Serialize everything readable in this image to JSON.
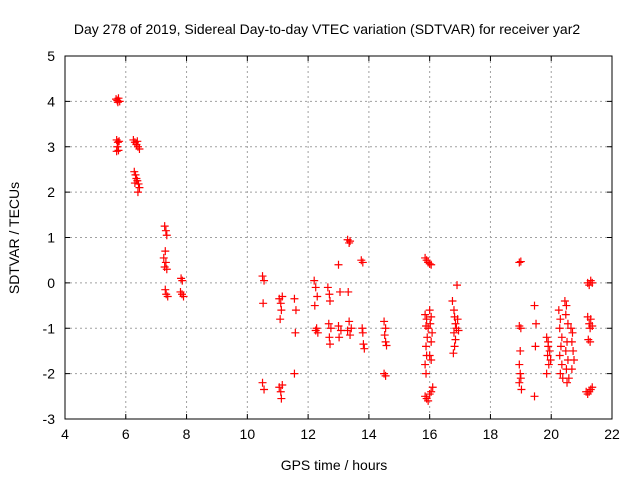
{
  "chart_data": {
    "type": "scatter",
    "title": "Day 278 of 2019, Sidereal Day-to-day VTEC variation (SDTVAR) for receiver yar2",
    "xlabel": "GPS time / hours",
    "ylabel": "SDTVAR / TECUs",
    "xlim": [
      4,
      22
    ],
    "ylim": [
      -3,
      5
    ],
    "xticks": [
      "4",
      "6",
      "8",
      "10",
      "12",
      "14",
      "16",
      "18",
      "20",
      "22"
    ],
    "yticks": [
      "-3",
      "-2",
      "-1",
      "0",
      "1",
      "2",
      "3",
      "4",
      "5"
    ],
    "grid": true,
    "marker": "+",
    "color": "#ff0000",
    "points": [
      [
        5.68,
        4.05
      ],
      [
        5.72,
        4.02
      ],
      [
        5.76,
        4.07
      ],
      [
        5.8,
        4.0
      ],
      [
        5.74,
        3.98
      ],
      [
        5.7,
        3.15
      ],
      [
        5.74,
        3.1
      ],
      [
        5.78,
        3.12
      ],
      [
        5.72,
        3.0
      ],
      [
        5.76,
        2.92
      ],
      [
        5.7,
        2.9
      ],
      [
        6.25,
        3.15
      ],
      [
        6.3,
        3.1
      ],
      [
        6.35,
        3.05
      ],
      [
        6.4,
        3.0
      ],
      [
        6.45,
        2.95
      ],
      [
        6.38,
        3.12
      ],
      [
        6.28,
        2.45
      ],
      [
        6.32,
        2.38
      ],
      [
        6.35,
        2.3
      ],
      [
        6.38,
        2.25
      ],
      [
        6.42,
        2.18
      ],
      [
        6.45,
        2.1
      ],
      [
        6.4,
        2.0
      ],
      [
        6.3,
        2.2
      ],
      [
        7.28,
        1.25
      ],
      [
        7.32,
        1.15
      ],
      [
        7.35,
        1.05
      ],
      [
        7.3,
        0.7
      ],
      [
        7.25,
        0.55
      ],
      [
        7.32,
        0.45
      ],
      [
        7.28,
        0.35
      ],
      [
        7.35,
        0.3
      ],
      [
        7.3,
        -0.15
      ],
      [
        7.33,
        -0.25
      ],
      [
        7.38,
        -0.3
      ],
      [
        7.82,
        0.1
      ],
      [
        7.86,
        0.05
      ],
      [
        7.8,
        -0.2
      ],
      [
        7.85,
        -0.25
      ],
      [
        7.9,
        -0.3
      ],
      [
        10.5,
        0.15
      ],
      [
        10.55,
        0.05
      ],
      [
        10.52,
        -0.45
      ],
      [
        10.5,
        -2.2
      ],
      [
        10.55,
        -2.35
      ],
      [
        11.05,
        -0.35
      ],
      [
        11.1,
        -0.45
      ],
      [
        11.12,
        -0.6
      ],
      [
        11.08,
        -0.8
      ],
      [
        11.15,
        -0.3
      ],
      [
        11.05,
        -2.3
      ],
      [
        11.1,
        -2.4
      ],
      [
        11.12,
        -2.55
      ],
      [
        11.15,
        -2.25
      ],
      [
        11.55,
        -0.35
      ],
      [
        11.6,
        -0.6
      ],
      [
        11.58,
        -1.1
      ],
      [
        11.55,
        -2.0
      ],
      [
        12.2,
        0.05
      ],
      [
        12.25,
        -0.1
      ],
      [
        12.3,
        -0.3
      ],
      [
        12.22,
        -0.5
      ],
      [
        12.28,
        -1.0
      ],
      [
        12.32,
        -1.1
      ],
      [
        12.25,
        -1.05
      ],
      [
        12.65,
        -0.1
      ],
      [
        12.7,
        -0.25
      ],
      [
        12.72,
        -0.4
      ],
      [
        12.68,
        -0.9
      ],
      [
        12.75,
        -1.0
      ],
      [
        12.7,
        -1.2
      ],
      [
        12.72,
        -1.35
      ],
      [
        13.0,
        0.4
      ],
      [
        13.05,
        -0.2
      ],
      [
        13.0,
        -0.95
      ],
      [
        13.08,
        -1.05
      ],
      [
        13.02,
        -1.2
      ],
      [
        13.3,
        0.95
      ],
      [
        13.35,
        0.88
      ],
      [
        13.38,
        0.92
      ],
      [
        13.32,
        -0.2
      ],
      [
        13.35,
        -0.85
      ],
      [
        13.3,
        -1.05
      ],
      [
        13.38,
        -1.15
      ],
      [
        13.42,
        -1.0
      ],
      [
        13.75,
        0.5
      ],
      [
        13.8,
        0.45
      ],
      [
        13.78,
        -1.0
      ],
      [
        13.82,
        -1.35
      ],
      [
        13.85,
        -1.45
      ],
      [
        13.8,
        -1.1
      ],
      [
        14.5,
        -0.85
      ],
      [
        14.55,
        -1.0
      ],
      [
        14.52,
        -1.15
      ],
      [
        14.55,
        -1.3
      ],
      [
        14.58,
        -1.38
      ],
      [
        14.5,
        -2.0
      ],
      [
        14.55,
        -2.05
      ],
      [
        15.85,
        0.55
      ],
      [
        15.9,
        0.5
      ],
      [
        15.95,
        0.45
      ],
      [
        16.0,
        0.42
      ],
      [
        16.05,
        0.4
      ],
      [
        15.85,
        -0.7
      ],
      [
        15.9,
        -0.8
      ],
      [
        15.88,
        -0.95
      ],
      [
        15.95,
        -1.0
      ],
      [
        15.92,
        -1.2
      ],
      [
        15.88,
        -1.4
      ],
      [
        15.9,
        -1.6
      ],
      [
        15.85,
        -1.8
      ],
      [
        15.88,
        -2.0
      ],
      [
        16.0,
        -0.6
      ],
      [
        16.05,
        -0.75
      ],
      [
        16.02,
        -0.9
      ],
      [
        16.08,
        -1.1
      ],
      [
        16.05,
        -1.3
      ],
      [
        16.0,
        -1.6
      ],
      [
        16.05,
        -1.7
      ],
      [
        16.1,
        -2.3
      ],
      [
        15.85,
        -2.5
      ],
      [
        15.9,
        -2.55
      ],
      [
        15.95,
        -2.6
      ],
      [
        16.0,
        -2.45
      ],
      [
        16.05,
        -2.4
      ],
      [
        16.75,
        -0.4
      ],
      [
        16.8,
        -0.6
      ],
      [
        16.82,
        -0.75
      ],
      [
        16.85,
        -0.9
      ],
      [
        16.88,
        -1.0
      ],
      [
        16.8,
        -1.1
      ],
      [
        16.85,
        -1.25
      ],
      [
        16.82,
        -1.4
      ],
      [
        16.78,
        -1.55
      ],
      [
        16.9,
        -0.05
      ],
      [
        16.92,
        -0.8
      ],
      [
        16.95,
        -1.05
      ],
      [
        18.95,
        0.45
      ],
      [
        19.0,
        0.47
      ],
      [
        18.95,
        -0.95
      ],
      [
        19.0,
        -1.0
      ],
      [
        18.95,
        -1.8
      ],
      [
        18.98,
        -2.0
      ],
      [
        19.0,
        -2.1
      ],
      [
        18.95,
        -2.2
      ],
      [
        19.02,
        -2.35
      ],
      [
        18.98,
        -1.5
      ],
      [
        19.45,
        -0.5
      ],
      [
        19.5,
        -0.9
      ],
      [
        19.48,
        -1.4
      ],
      [
        19.45,
        -2.5
      ],
      [
        19.85,
        -1.2
      ],
      [
        19.9,
        -1.4
      ],
      [
        19.88,
        -1.6
      ],
      [
        19.92,
        -1.8
      ],
      [
        19.85,
        -2.0
      ],
      [
        19.9,
        -1.3
      ],
      [
        19.95,
        -1.5
      ],
      [
        19.98,
        -1.7
      ],
      [
        20.25,
        -0.6
      ],
      [
        20.3,
        -0.8
      ],
      [
        20.28,
        -1.0
      ],
      [
        20.35,
        -1.2
      ],
      [
        20.32,
        -1.4
      ],
      [
        20.28,
        -1.6
      ],
      [
        20.35,
        -1.8
      ],
      [
        20.3,
        -2.0
      ],
      [
        20.38,
        -2.1
      ],
      [
        20.45,
        -0.4
      ],
      [
        20.5,
        -0.5
      ],
      [
        20.48,
        -0.7
      ],
      [
        20.55,
        -0.9
      ],
      [
        20.52,
        -1.3
      ],
      [
        20.48,
        -1.5
      ],
      [
        20.55,
        -1.7
      ],
      [
        20.5,
        -1.9
      ],
      [
        20.58,
        -2.1
      ],
      [
        20.52,
        -2.2
      ],
      [
        20.65,
        -1.0
      ],
      [
        20.7,
        -1.1
      ],
      [
        20.68,
        -1.3
      ],
      [
        20.72,
        -1.5
      ],
      [
        20.75,
        -1.7
      ],
      [
        20.68,
        -1.9
      ],
      [
        21.2,
        0.0
      ],
      [
        21.25,
        -0.05
      ],
      [
        21.3,
        0.05
      ],
      [
        21.35,
        0.0
      ],
      [
        21.2,
        -0.75
      ],
      [
        21.25,
        -0.9
      ],
      [
        21.28,
        -1.0
      ],
      [
        21.3,
        -0.8
      ],
      [
        21.35,
        -0.95
      ],
      [
        21.22,
        -1.25
      ],
      [
        21.28,
        -1.3
      ],
      [
        21.15,
        -2.4
      ],
      [
        21.2,
        -2.45
      ],
      [
        21.25,
        -2.4
      ],
      [
        21.3,
        -2.35
      ],
      [
        21.35,
        -2.3
      ]
    ]
  }
}
